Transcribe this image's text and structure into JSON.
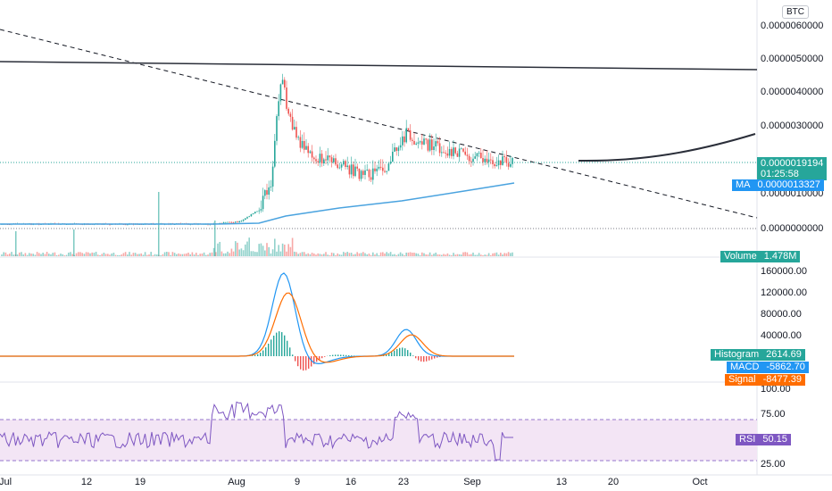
{
  "currency_badge": "BTC",
  "price_axis": {
    "ticks": [
      "0.0000060000",
      "0.0000050000",
      "0.0000040000",
      "0.0000030000",
      "0.0000010000",
      "0.0000000000"
    ],
    "last_price": "0.0000019194",
    "countdown": "01:25:58",
    "ma_label": "MA",
    "ma_value": "0.0000013327",
    "volume_label": "Volume",
    "volume_value": "1.478M"
  },
  "macd_axis": {
    "ticks": [
      "160000.00",
      "120000.00",
      "80000.00",
      "40000.00"
    ],
    "histogram_label": "Histogram",
    "histogram_value": "2614.69",
    "macd_label": "MACD",
    "macd_value": "-5862.70",
    "signal_label": "Signal",
    "signal_value": "-8477.39"
  },
  "rsi_axis": {
    "ticks": [
      "100.00",
      "75.00",
      "25.00"
    ],
    "rsi_label": "RSI",
    "rsi_value": "50.15"
  },
  "time_axis": [
    "Jul",
    "12",
    "19",
    "Aug",
    "9",
    "16",
    "23",
    "Sep",
    "13",
    "20",
    "Oct"
  ],
  "colors": {
    "up": "#26a69a",
    "down": "#ef5350",
    "ma": "#2196f3",
    "macd": "#2196f3",
    "signal": "#ff6d00",
    "rsi": "#7e57c2",
    "rsi_band": "#f3e5f5"
  }
}
